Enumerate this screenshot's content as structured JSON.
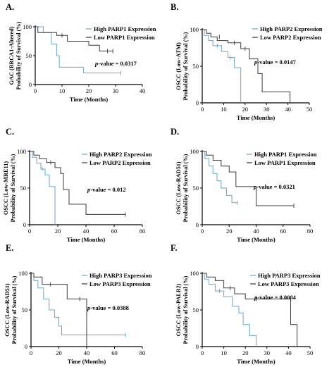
{
  "colors": {
    "high": "#6aa5cc",
    "low": "#3a3a3a"
  },
  "chart_data": [
    {
      "type": "line",
      "panel": "A.",
      "ylabel": [
        "GAC (BRCA1-Altered)",
        "Probability of Survival (%)"
      ],
      "xlabel": "Time (Months)",
      "xlim": [
        0,
        40
      ],
      "ylim": [
        0,
        100
      ],
      "xticks": [
        0,
        10,
        20,
        30,
        40
      ],
      "yticks": [
        0,
        50,
        100
      ],
      "pvalue": "= 0.0317",
      "series": [
        {
          "name": "High PARP1 Expression",
          "color": "high",
          "steps": [
            [
              0,
              100
            ],
            [
              3,
              100
            ],
            [
              3,
              90
            ],
            [
              6,
              90
            ],
            [
              6,
              70
            ],
            [
              8,
              70
            ],
            [
              8,
              50
            ],
            [
              9,
              50
            ],
            [
              9,
              30
            ],
            [
              18,
              30
            ],
            [
              18,
              20
            ],
            [
              32,
              20
            ]
          ],
          "censor": [
            [
              32,
              20
            ]
          ]
        },
        {
          "name": "Low PARP1 Expression",
          "color": "low",
          "steps": [
            [
              0,
              100
            ],
            [
              1,
              100
            ],
            [
              1,
              90
            ],
            [
              8,
              90
            ],
            [
              8,
              85
            ],
            [
              12,
              85
            ],
            [
              12,
              75
            ],
            [
              20,
              75
            ],
            [
              20,
              68
            ],
            [
              24,
              68
            ],
            [
              24,
              58
            ],
            [
              29,
              58
            ]
          ],
          "censor": [
            [
              10,
              85
            ],
            [
              27,
              58
            ],
            [
              29,
              58
            ]
          ]
        }
      ]
    },
    {
      "type": "line",
      "panel": "B.",
      "ylabel": [
        "OSCC (Low-ATM)",
        "Probability of Survival (%)"
      ],
      "xlabel": "Time (Months)",
      "xlim": [
        0,
        50
      ],
      "ylim": [
        0,
        100
      ],
      "xticks": [
        0,
        10,
        20,
        30,
        40,
        50
      ],
      "yticks": [
        0,
        50,
        100
      ],
      "pvalue": "= 0.0147",
      "series": [
        {
          "name": "High PARP2 Expression",
          "color": "high",
          "steps": [
            [
              0,
              100
            ],
            [
              1,
              100
            ],
            [
              1,
              92
            ],
            [
              3,
              92
            ],
            [
              3,
              85
            ],
            [
              5,
              85
            ],
            [
              5,
              78
            ],
            [
              9,
              78
            ],
            [
              9,
              70
            ],
            [
              12,
              70
            ],
            [
              12,
              62
            ],
            [
              15,
              62
            ],
            [
              15,
              48
            ],
            [
              18,
              48
            ],
            [
              18,
              0
            ]
          ],
          "censor": [
            [
              7,
              78
            ],
            [
              13,
              62
            ]
          ]
        },
        {
          "name": "Low PARP2 Expression",
          "color": "low",
          "steps": [
            [
              0,
              100
            ],
            [
              2,
              100
            ],
            [
              2,
              95
            ],
            [
              4,
              95
            ],
            [
              4,
              90
            ],
            [
              7,
              90
            ],
            [
              7,
              85
            ],
            [
              12,
              85
            ],
            [
              12,
              82
            ],
            [
              18,
              82
            ],
            [
              18,
              74
            ],
            [
              22,
              74
            ],
            [
              22,
              60
            ],
            [
              26,
              60
            ],
            [
              26,
              40
            ],
            [
              28,
              40
            ],
            [
              28,
              15
            ],
            [
              41,
              15
            ],
            [
              41,
              0
            ]
          ],
          "censor": [
            [
              8,
              90
            ],
            [
              15,
              82
            ],
            [
              20,
              74
            ]
          ]
        }
      ]
    },
    {
      "type": "line",
      "panel": "C.",
      "ylabel": [
        "OSCC (Low-MRE11)",
        "Probability of Survival (%)"
      ],
      "xlabel": "Time (Months)",
      "xlim": [
        0,
        80
      ],
      "ylim": [
        0,
        100
      ],
      "xticks": [
        0,
        20,
        40,
        60,
        80
      ],
      "yticks": [
        0,
        50,
        100
      ],
      "pvalue": "= 0.012",
      "series": [
        {
          "name": "High PARP2 Expression",
          "color": "high",
          "steps": [
            [
              0,
              100
            ],
            [
              2,
              100
            ],
            [
              2,
              92
            ],
            [
              5,
              92
            ],
            [
              5,
              84
            ],
            [
              8,
              84
            ],
            [
              8,
              76
            ],
            [
              11,
              76
            ],
            [
              11,
              68
            ],
            [
              14,
              68
            ],
            [
              14,
              52
            ],
            [
              18,
              52
            ],
            [
              18,
              0
            ]
          ],
          "censor": [
            [
              9,
              76
            ]
          ]
        },
        {
          "name": "Low PARP2 Expression",
          "color": "low",
          "steps": [
            [
              0,
              100
            ],
            [
              3,
              100
            ],
            [
              3,
              95
            ],
            [
              7,
              95
            ],
            [
              7,
              90
            ],
            [
              12,
              90
            ],
            [
              12,
              85
            ],
            [
              18,
              85
            ],
            [
              18,
              78
            ],
            [
              22,
              78
            ],
            [
              22,
              70
            ],
            [
              24,
              70
            ],
            [
              24,
              48
            ],
            [
              28,
              48
            ],
            [
              28,
              28
            ],
            [
              40,
              28
            ],
            [
              40,
              14
            ],
            [
              68,
              14
            ]
          ],
          "censor": [
            [
              15,
              85
            ],
            [
              68,
              14
            ]
          ]
        }
      ]
    },
    {
      "type": "line",
      "panel": "D.",
      "ylabel": [
        "OSCC (Low-RAD51)",
        "Probability of Survival (%)"
      ],
      "xlabel": "Time (Months)",
      "xlim": [
        0,
        80
      ],
      "ylim": [
        0,
        100
      ],
      "xticks": [
        0,
        20,
        40,
        60,
        80
      ],
      "yticks": [
        0,
        50,
        100
      ],
      "pvalue": "= 0.0321",
      "series": [
        {
          "name": "High PARP1 Expression",
          "color": "high",
          "steps": [
            [
              0,
              100
            ],
            [
              2,
              100
            ],
            [
              2,
              90
            ],
            [
              5,
              90
            ],
            [
              5,
              80
            ],
            [
              8,
              80
            ],
            [
              8,
              70
            ],
            [
              11,
              70
            ],
            [
              11,
              60
            ],
            [
              14,
              60
            ],
            [
              14,
              50
            ],
            [
              18,
              50
            ],
            [
              18,
              40
            ],
            [
              22,
              40
            ],
            [
              22,
              30
            ],
            [
              26,
              30
            ]
          ],
          "censor": [
            [
              26,
              30
            ]
          ]
        },
        {
          "name": "Low PARP1 Expression",
          "color": "low",
          "steps": [
            [
              0,
              100
            ],
            [
              3,
              100
            ],
            [
              3,
              95
            ],
            [
              8,
              95
            ],
            [
              8,
              88
            ],
            [
              14,
              88
            ],
            [
              14,
              80
            ],
            [
              20,
              80
            ],
            [
              20,
              72
            ],
            [
              25,
              72
            ],
            [
              25,
              52
            ],
            [
              40,
              52
            ],
            [
              40,
              26
            ],
            [
              68,
              26
            ]
          ],
          "censor": [
            [
              68,
              26
            ]
          ]
        }
      ]
    },
    {
      "type": "line",
      "panel": "E.",
      "ylabel": [
        "OSCC (Low-RAD51)",
        "Probability of Survival (%)"
      ],
      "xlabel": "Time (Months)",
      "xlim": [
        0,
        80
      ],
      "ylim": [
        0,
        100
      ],
      "xticks": [
        0,
        20,
        40,
        60,
        80
      ],
      "yticks": [
        0,
        50,
        100
      ],
      "pvalue": "= 0.0388",
      "series": [
        {
          "name": "High PARP3 Expression",
          "color": "high",
          "steps": [
            [
              0,
              100
            ],
            [
              2,
              100
            ],
            [
              2,
              90
            ],
            [
              5,
              90
            ],
            [
              5,
              80
            ],
            [
              9,
              80
            ],
            [
              9,
              65
            ],
            [
              13,
              65
            ],
            [
              13,
              50
            ],
            [
              17,
              50
            ],
            [
              17,
              40
            ],
            [
              20,
              40
            ],
            [
              20,
              28
            ],
            [
              22,
              28
            ],
            [
              22,
              16
            ],
            [
              68,
              16
            ]
          ],
          "censor": [
            [
              68,
              16
            ]
          ]
        },
        {
          "name": "Low PARP3 Expression",
          "color": "low",
          "steps": [
            [
              0,
              100
            ],
            [
              2,
              100
            ],
            [
              2,
              95
            ],
            [
              8,
              95
            ],
            [
              8,
              85
            ],
            [
              26,
              85
            ],
            [
              26,
              65
            ],
            [
              40,
              65
            ],
            [
              40,
              0
            ]
          ],
          "censor": [
            [
              14,
              85
            ],
            [
              35,
              65
            ]
          ]
        }
      ]
    },
    {
      "type": "line",
      "panel": "F.",
      "ylabel": [
        "OSCC (Low-PALB2)",
        "Probability of Survival (%)"
      ],
      "xlabel": "Time (Months)",
      "xlim": [
        0,
        50
      ],
      "ylim": [
        0,
        100
      ],
      "xticks": [
        0,
        10,
        20,
        30,
        40,
        50
      ],
      "yticks": [
        0,
        50,
        100
      ],
      "pvalue": "= 0.0084",
      "series": [
        {
          "name": "High PARP3 Expression",
          "color": "high",
          "steps": [
            [
              0,
              100
            ],
            [
              1,
              100
            ],
            [
              1,
              92
            ],
            [
              3,
              92
            ],
            [
              3,
              85
            ],
            [
              6,
              85
            ],
            [
              6,
              76
            ],
            [
              10,
              76
            ],
            [
              10,
              68
            ],
            [
              14,
              68
            ],
            [
              14,
              55
            ],
            [
              17,
              55
            ],
            [
              17,
              46
            ],
            [
              19,
              46
            ],
            [
              19,
              30
            ],
            [
              22,
              30
            ],
            [
              22,
              15
            ],
            [
              25,
              15
            ],
            [
              25,
              0
            ]
          ],
          "censor": [
            [
              8,
              76
            ]
          ]
        },
        {
          "name": "Low PARP3 Expression",
          "color": "low",
          "steps": [
            [
              0,
              100
            ],
            [
              2,
              100
            ],
            [
              2,
              95
            ],
            [
              6,
              95
            ],
            [
              6,
              90
            ],
            [
              10,
              90
            ],
            [
              10,
              80
            ],
            [
              15,
              80
            ],
            [
              15,
              72
            ],
            [
              20,
              72
            ],
            [
              20,
              65
            ],
            [
              41,
              65
            ],
            [
              41,
              30
            ],
            [
              44,
              30
            ],
            [
              44,
              0
            ]
          ],
          "censor": [
            [
              13,
              80
            ],
            [
              25,
              65
            ]
          ]
        }
      ]
    }
  ]
}
